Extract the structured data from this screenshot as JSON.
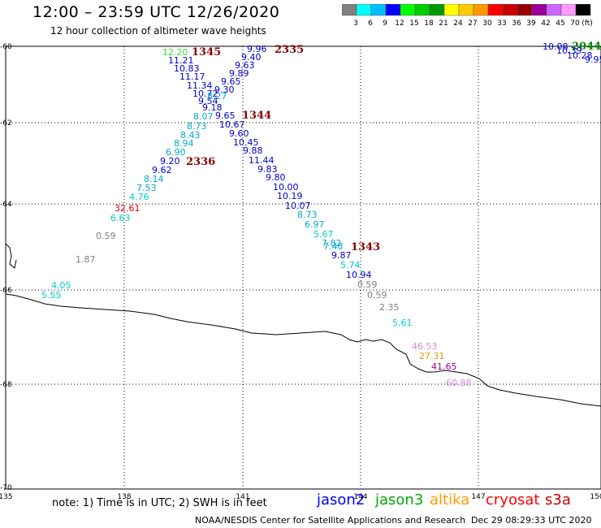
{
  "header": {
    "title": "12:00 – 23:59 UTC 12/26/2020",
    "subtitle": "12 hour collection of altimeter wave heights"
  },
  "colorbar": {
    "colors": [
      "#808080",
      "#00ffff",
      "#00bfff",
      "#0000ff",
      "#00ff00",
      "#00cc00",
      "#009900",
      "#ffff00",
      "#ffcc00",
      "#ff9900",
      "#ff0000",
      "#cc0000",
      "#990000",
      "#990099",
      "#cc66ff",
      "#ff99ff",
      "#000000"
    ],
    "labels": [
      "3",
      "6",
      "9",
      "12",
      "15",
      "18",
      "21",
      "24",
      "27",
      "30",
      "33",
      "36",
      "39",
      "42",
      "45",
      "70"
    ],
    "unit": "(ft)"
  },
  "axes": {
    "x_ticks": [
      "135",
      "138",
      "141",
      "144",
      "147",
      "150"
    ],
    "y_ticks": [
      "-60",
      "-62",
      "-64",
      "-66",
      "-68",
      "-70"
    ]
  },
  "pass_labels": [
    {
      "text": "1345",
      "color": "#8b0000"
    },
    {
      "text": "2335",
      "color": "#8b0000"
    },
    {
      "text": "1344",
      "color": "#8b0000"
    },
    {
      "text": "2336",
      "color": "#8b0000"
    },
    {
      "text": "1343",
      "color": "#8b0000"
    },
    {
      "text": "2044",
      "color": "#008800"
    }
  ],
  "observations": [
    {
      "v": "12.20",
      "c": "#33dd33"
    },
    {
      "v": "11.21",
      "c": "#0000cc"
    },
    {
      "v": "10.83",
      "c": "#0000cc"
    },
    {
      "v": "11.17",
      "c": "#0000cc"
    },
    {
      "v": "11.34",
      "c": "#0000cc"
    },
    {
      "v": "10.72",
      "c": "#0000cc"
    },
    {
      "v": "9.54",
      "c": "#0000cc"
    },
    {
      "v": "9.18",
      "c": "#0000cc"
    },
    {
      "v": "8.07",
      "c": "#00aacc"
    },
    {
      "v": "8.73",
      "c": "#00aacc"
    },
    {
      "v": "8.43",
      "c": "#00aacc"
    },
    {
      "v": "8.94",
      "c": "#00aacc"
    },
    {
      "v": "6.90",
      "c": "#00aacc"
    },
    {
      "v": "9.20",
      "c": "#0000cc"
    },
    {
      "v": "9.62",
      "c": "#0000cc"
    },
    {
      "v": "8.14",
      "c": "#00aacc"
    },
    {
      "v": "7.53",
      "c": "#00aacc"
    },
    {
      "v": "4.76",
      "c": "#00cccc"
    },
    {
      "v": "32.61",
      "c": "#dd0000"
    },
    {
      "v": "6.63",
      "c": "#00cccc"
    },
    {
      "v": "0.59",
      "c": "#808080"
    },
    {
      "v": "1.87",
      "c": "#808080"
    },
    {
      "v": "4.05",
      "c": "#00cccc"
    },
    {
      "v": "5.55",
      "c": "#00cccc"
    },
    {
      "v": "9.96",
      "c": "#0000cc"
    },
    {
      "v": "9.40",
      "c": "#0000cc"
    },
    {
      "v": "9.63",
      "c": "#0000cc"
    },
    {
      "v": "9.89",
      "c": "#0000cc"
    },
    {
      "v": "9.65",
      "c": "#0000cc"
    },
    {
      "v": "9.30",
      "c": "#0000cc"
    },
    {
      "v": "8.27",
      "c": "#00aacc"
    },
    {
      "v": "9.65",
      "c": "#0000cc"
    },
    {
      "v": "10.67",
      "c": "#0000cc"
    },
    {
      "v": "9.60",
      "c": "#0000cc"
    },
    {
      "v": "10.45",
      "c": "#0000cc"
    },
    {
      "v": "9.88",
      "c": "#0000cc"
    },
    {
      "v": "11.44",
      "c": "#0000cc"
    },
    {
      "v": "9.83",
      "c": "#0000cc"
    },
    {
      "v": "9.80",
      "c": "#0000cc"
    },
    {
      "v": "10.00",
      "c": "#0000cc"
    },
    {
      "v": "10.19",
      "c": "#0000cc"
    },
    {
      "v": "10.07",
      "c": "#0000cc"
    },
    {
      "v": "8.73",
      "c": "#00aacc"
    },
    {
      "v": "6.97",
      "c": "#00aacc"
    },
    {
      "v": "5.67",
      "c": "#00cccc"
    },
    {
      "v": "7.82",
      "c": "#00aacc"
    },
    {
      "v": "7.48",
      "c": "#00aacc"
    },
    {
      "v": "9.87",
      "c": "#0000cc"
    },
    {
      "v": "5.74",
      "c": "#00cccc"
    },
    {
      "v": "10.94",
      "c": "#0000cc"
    },
    {
      "v": "0.59",
      "c": "#808080"
    },
    {
      "v": "0.59",
      "c": "#808080"
    },
    {
      "v": "2.35",
      "c": "#808080"
    },
    {
      "v": "5.61",
      "c": "#00cccc"
    },
    {
      "v": "46.53",
      "c": "#dd88dd"
    },
    {
      "v": "27.31",
      "c": "#dd9900"
    },
    {
      "v": "41.65",
      "c": "#990099"
    },
    {
      "v": "60.88",
      "c": "#dd88dd"
    },
    {
      "v": "10.08",
      "c": "#0000cc"
    },
    {
      "v": "10.39",
      "c": "#0000cc"
    },
    {
      "v": "10.28",
      "c": "#0000cc"
    },
    {
      "v": "9.95",
      "c": "#0000cc"
    }
  ],
  "footer": {
    "note": "note:  1) Time is in UTC; 2) SWH is in feet",
    "legend": [
      {
        "label": "jason2",
        "color": "#0000ff"
      },
      {
        "label": "jason3",
        "color": "#00aa00"
      },
      {
        "label": "altika",
        "color": "#ff9900"
      },
      {
        "label": "cryosat",
        "color": "#ff0000"
      },
      {
        "label": "s3a",
        "color": "#cc0000"
      }
    ],
    "credit": "NOAA/NESDIS Center for Satellite Applications and Research",
    "timestamp": "Dec 29 08:29:33 UTC 2020"
  }
}
